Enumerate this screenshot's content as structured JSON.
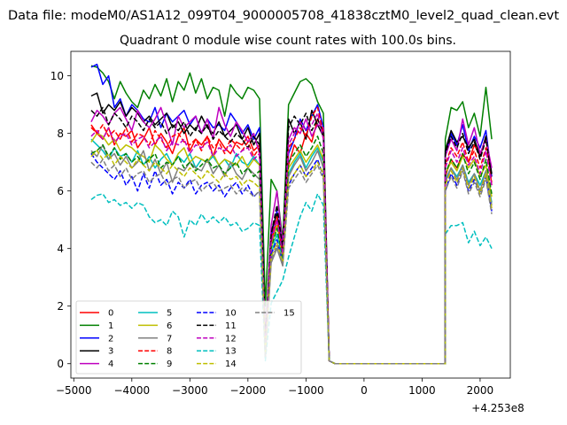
{
  "chart_data": {
    "type": "line",
    "suptitle": "Data file: modeM0/AS1A12_099T04_9000005708_41838cztM0_level2_quad_clean.evt",
    "title": "Quadrant 0 module wise count rates with 100.0s bins.",
    "xlabel": "",
    "ylabel": "",
    "x_offset_label": "+4.253e8",
    "xlim": [
      -5050,
      2520
    ],
    "ylim": [
      -0.5,
      10.85
    ],
    "xticks": [
      -5000,
      -4000,
      -3000,
      -2000,
      -1000,
      0,
      1000,
      2000
    ],
    "xtick_labels": [
      "−5000",
      "−4000",
      "−3000",
      "−2000",
      "−1000",
      "0",
      "1000",
      "2000"
    ],
    "yticks": [
      0,
      2,
      4,
      6,
      8,
      10
    ],
    "ytick_labels": [
      "0",
      "2",
      "4",
      "6",
      "8",
      "10"
    ],
    "legend_position": "lower-left",
    "legend_columns": 4,
    "segments": [
      {
        "start": -4700,
        "end": -1800,
        "step": 100
      },
      {
        "start": -1700,
        "end": -600,
        "step": 100
      },
      {
        "start": 1400,
        "end": 2200,
        "step": 100
      }
    ],
    "gap_values": {
      "x_start": -600,
      "x_end": 1400,
      "value": 0
    },
    "series": [
      {
        "name": "0",
        "color": "#ff0000",
        "dash": "solid",
        "seg1": [
          8.3,
          8.0,
          7.8,
          8.2,
          7.6,
          8.0,
          7.9,
          8.1,
          7.5,
          7.8,
          8.2,
          7.6,
          8.0,
          7.7,
          7.3,
          7.9,
          8.2,
          7.4,
          7.8,
          7.6,
          7.9,
          7.2,
          7.8,
          7.5,
          7.3,
          7.7,
          7.6,
          7.9,
          7.4,
          7.6
        ],
        "seg2": [
          0.6,
          4.2,
          5.0,
          3.7,
          6.9,
          7.6,
          7.3,
          8.0,
          7.7,
          8.5,
          8.1,
          0.1
        ],
        "seg3": [
          6.5,
          7.1,
          6.8,
          7.3,
          7.0,
          7.6,
          7.2,
          7.9,
          6.2
        ]
      },
      {
        "name": "1",
        "color": "#008000",
        "dash": "solid",
        "seg1": [
          10.35,
          10.3,
          10.1,
          9.8,
          9.2,
          9.8,
          9.4,
          9.1,
          8.9,
          9.5,
          9.2,
          9.7,
          9.3,
          9.9,
          9.1,
          9.8,
          9.5,
          10.1,
          9.4,
          9.9,
          9.2,
          9.6,
          9.5,
          8.6,
          9.7,
          9.4,
          9.2,
          9.6,
          9.5,
          9.2
        ],
        "seg2": [
          2.0,
          6.4,
          6.0,
          4.3,
          9.0,
          9.4,
          9.8,
          9.9,
          9.7,
          9.1,
          8.7,
          0.1
        ],
        "seg3": [
          7.8,
          8.9,
          8.8,
          9.1,
          8.2,
          8.7,
          7.9,
          9.6,
          7.8
        ]
      },
      {
        "name": "2",
        "color": "#0000ff",
        "dash": "solid",
        "seg1": [
          10.3,
          10.4,
          9.7,
          10.0,
          8.9,
          9.2,
          8.6,
          9.0,
          8.8,
          8.5,
          8.4,
          8.9,
          8.2,
          8.7,
          8.4,
          8.6,
          8.8,
          8.3,
          8.6,
          8.0,
          8.5,
          8.2,
          8.3,
          8.1,
          8.7,
          8.4,
          8.0,
          8.3,
          7.8,
          8.2
        ],
        "seg2": [
          0.6,
          4.4,
          5.3,
          3.9,
          7.3,
          7.8,
          8.5,
          8.1,
          8.6,
          9.0,
          8.2,
          0.1
        ],
        "seg3": [
          7.2,
          8.0,
          7.6,
          8.3,
          7.4,
          7.9,
          7.5,
          8.1,
          6.5
        ]
      },
      {
        "name": "3",
        "color": "#000000",
        "dash": "solid",
        "seg1": [
          9.3,
          9.4,
          8.7,
          9.0,
          8.8,
          9.1,
          8.6,
          8.9,
          8.7,
          8.4,
          8.6,
          8.3,
          8.5,
          8.7,
          8.2,
          8.4,
          8.0,
          8.3,
          8.1,
          8.6,
          8.2,
          8.0,
          8.4,
          7.9,
          8.1,
          8.3,
          7.8,
          8.2,
          7.6,
          8.0
        ],
        "seg2": [
          0.8,
          4.6,
          5.2,
          3.8,
          8.5,
          8.0,
          8.4,
          7.8,
          8.8,
          8.3,
          7.9,
          0.1
        ],
        "seg3": [
          7.4,
          8.1,
          7.7,
          7.9,
          7.5,
          7.8,
          7.2,
          7.9,
          6.6
        ]
      },
      {
        "name": "4",
        "color": "#bf00bf",
        "dash": "solid",
        "seg1": [
          8.4,
          8.8,
          8.6,
          8.3,
          8.7,
          8.9,
          8.5,
          8.1,
          8.8,
          8.4,
          8.2,
          8.5,
          8.9,
          8.3,
          7.6,
          8.6,
          8.2,
          8.4,
          8.6,
          8.0,
          8.5,
          7.8,
          8.9,
          8.3,
          7.9,
          8.4,
          8.1,
          7.7,
          8.0,
          7.3
        ],
        "seg2": [
          0.6,
          4.8,
          6.0,
          4.1,
          7.8,
          8.2,
          8.0,
          8.5,
          7.9,
          8.3,
          8.2,
          0.1
        ],
        "seg3": [
          7.2,
          7.8,
          7.4,
          8.5,
          7.6,
          8.2,
          7.3,
          7.8,
          6.8
        ]
      },
      {
        "name": "5",
        "color": "#00bfbf",
        "dash": "solid",
        "seg1": [
          7.8,
          7.6,
          7.4,
          7.1,
          7.5,
          7.2,
          7.3,
          7.0,
          7.4,
          6.9,
          7.2,
          6.8,
          7.1,
          7.3,
          6.9,
          7.2,
          7.0,
          7.3,
          6.8,
          7.1,
          7.0,
          7.2,
          6.9,
          7.1,
          6.8,
          7.3,
          7.0,
          6.9,
          7.2,
          6.9
        ],
        "seg2": [
          0.4,
          3.8,
          4.5,
          3.6,
          6.6,
          7.0,
          7.3,
          6.8,
          7.2,
          7.5,
          7.0,
          0.1
        ],
        "seg3": [
          6.4,
          6.8,
          6.5,
          6.9,
          6.3,
          6.6,
          6.2,
          6.7,
          5.6
        ]
      },
      {
        "name": "6",
        "color": "#bfbf00",
        "dash": "solid",
        "seg1": [
          7.7,
          8.0,
          7.9,
          7.6,
          7.8,
          7.4,
          7.6,
          7.5,
          7.3,
          7.2,
          7.0,
          7.6,
          7.4,
          7.1,
          6.9,
          7.3,
          7.5,
          7.0,
          7.2,
          7.1,
          7.0,
          7.3,
          6.9,
          7.1,
          7.0,
          6.9,
          7.2,
          6.8,
          7.1,
          6.9
        ],
        "seg2": [
          0.5,
          4.0,
          4.8,
          3.7,
          6.8,
          7.1,
          7.4,
          7.0,
          7.3,
          7.6,
          7.1,
          0.1
        ],
        "seg3": [
          6.6,
          7.0,
          6.7,
          7.2,
          6.8,
          7.1,
          6.5,
          6.9,
          5.8
        ]
      },
      {
        "name": "7",
        "color": "#808080",
        "dash": "solid",
        "seg1": [
          7.4,
          7.2,
          7.6,
          7.1,
          7.3,
          6.9,
          7.2,
          6.8,
          7.0,
          7.4,
          6.7,
          7.1,
          6.6,
          7.0,
          6.3,
          6.8,
          6.7,
          7.0,
          6.8,
          6.7,
          7.1,
          6.6,
          6.9,
          6.5,
          7.0,
          6.6,
          6.4,
          6.8,
          6.6,
          6.4
        ],
        "seg2": [
          0.2,
          3.5,
          4.0,
          3.4,
          6.5,
          6.9,
          7.2,
          6.7,
          7.0,
          7.4,
          6.8,
          0.1
        ],
        "seg3": [
          6.3,
          6.8,
          6.4,
          6.9,
          6.2,
          6.6,
          6.0,
          6.7,
          5.5
        ]
      },
      {
        "name": "8",
        "color": "#ff0000",
        "dash": "dash",
        "seg1": [
          8.2,
          8.0,
          8.3,
          7.9,
          8.1,
          7.8,
          8.2,
          7.7,
          8.0,
          7.9,
          7.6,
          8.1,
          7.8,
          7.5,
          7.9,
          8.0,
          7.7,
          7.6,
          7.8,
          7.4,
          7.9,
          7.5,
          7.7,
          7.3,
          7.8,
          7.6,
          7.4,
          7.7,
          7.2,
          7.5
        ],
        "seg2": [
          0.5,
          4.3,
          5.1,
          3.8,
          7.5,
          7.8,
          8.2,
          7.9,
          8.6,
          8.9,
          8.0,
          0.1
        ],
        "seg3": [
          6.9,
          7.5,
          7.2,
          7.7,
          7.0,
          7.4,
          6.8,
          7.5,
          6.3
        ]
      },
      {
        "name": "9",
        "color": "#008000",
        "dash": "dash",
        "seg1": [
          7.3,
          7.4,
          7.6,
          7.2,
          7.5,
          7.1,
          7.3,
          7.0,
          7.2,
          6.9,
          7.1,
          7.3,
          6.8,
          7.0,
          6.9,
          7.2,
          6.8,
          7.0,
          6.7,
          6.9,
          7.1,
          6.8,
          6.9,
          6.6,
          6.8,
          7.0,
          6.6,
          6.8,
          6.5,
          6.7
        ],
        "seg2": [
          0.4,
          4.0,
          4.7,
          3.7,
          7.0,
          7.3,
          7.6,
          7.2,
          7.5,
          7.9,
          7.3,
          0.1
        ],
        "seg3": [
          6.6,
          7.1,
          6.8,
          7.3,
          6.6,
          7.0,
          6.4,
          7.1,
          5.9
        ]
      },
      {
        "name": "10",
        "color": "#0000ff",
        "dash": "dash",
        "seg1": [
          7.3,
          7.0,
          6.8,
          6.6,
          6.4,
          6.7,
          6.2,
          6.5,
          6.0,
          6.6,
          6.1,
          6.7,
          6.2,
          6.4,
          5.9,
          6.3,
          6.1,
          6.4,
          5.9,
          6.2,
          6.3,
          6.0,
          6.2,
          5.8,
          6.1,
          6.3,
          5.9,
          6.2,
          5.8,
          6.0
        ],
        "seg2": [
          0.3,
          3.8,
          4.3,
          3.5,
          6.2,
          6.6,
          6.9,
          6.5,
          6.8,
          7.1,
          6.5,
          0.1
        ],
        "seg3": [
          6.0,
          6.6,
          6.2,
          6.8,
          6.0,
          6.4,
          5.9,
          6.5,
          5.3
        ]
      },
      {
        "name": "11",
        "color": "#000000",
        "dash": "dash",
        "seg1": [
          8.8,
          8.6,
          8.9,
          8.3,
          8.7,
          8.5,
          8.2,
          8.6,
          8.4,
          8.1,
          8.5,
          8.2,
          8.4,
          8.0,
          8.3,
          8.1,
          8.4,
          7.9,
          8.2,
          8.0,
          8.3,
          7.8,
          8.1,
          7.9,
          7.7,
          8.0,
          7.8,
          7.5,
          7.9,
          7.6
        ],
        "seg2": [
          0.7,
          4.5,
          5.5,
          4.0,
          8.2,
          8.6,
          8.3,
          8.7,
          8.1,
          8.5,
          8.0,
          0.1
        ],
        "seg3": [
          7.3,
          7.9,
          7.5,
          8.0,
          7.3,
          7.7,
          7.1,
          7.8,
          6.5
        ]
      },
      {
        "name": "12",
        "color": "#bf00bf",
        "dash": "dash",
        "seg1": [
          7.9,
          8.1,
          7.8,
          8.2,
          7.7,
          7.9,
          8.0,
          7.6,
          7.8,
          7.9,
          7.5,
          7.7,
          7.9,
          7.4,
          7.7,
          7.6,
          7.8,
          7.3,
          7.6,
          7.5,
          7.7,
          7.2,
          7.5,
          7.4,
          7.6,
          7.2,
          7.4,
          7.5,
          7.1,
          7.3
        ],
        "seg2": [
          0.5,
          4.2,
          5.0,
          3.8,
          7.6,
          8.0,
          8.4,
          8.1,
          8.3,
          8.7,
          7.8,
          0.1
        ],
        "seg3": [
          6.8,
          7.4,
          7.0,
          7.5,
          6.9,
          7.2,
          6.6,
          7.4,
          6.2
        ]
      },
      {
        "name": "13",
        "color": "#00bfbf",
        "dash": "dash",
        "seg1": [
          5.7,
          5.85,
          5.9,
          5.6,
          5.7,
          5.5,
          5.6,
          5.4,
          5.6,
          5.5,
          5.1,
          4.9,
          5.0,
          4.8,
          5.3,
          5.1,
          4.4,
          5.0,
          4.8,
          5.2,
          4.9,
          5.1,
          4.9,
          5.1,
          4.8,
          4.9,
          4.6,
          4.7,
          4.9,
          4.8
        ],
        "seg2": [
          0.1,
          2.1,
          2.5,
          2.9,
          3.7,
          4.4,
          5.1,
          5.6,
          5.3,
          5.9,
          5.5,
          0.1
        ],
        "seg3": [
          4.5,
          4.8,
          4.8,
          4.9,
          4.2,
          4.6,
          4.1,
          4.4,
          4.0
        ]
      },
      {
        "name": "14",
        "color": "#bfbf00",
        "dash": "dash",
        "seg1": [
          7.2,
          7.4,
          7.1,
          7.3,
          6.9,
          7.2,
          7.0,
          6.8,
          7.1,
          6.9,
          6.7,
          7.0,
          6.8,
          6.6,
          6.9,
          6.7,
          6.5,
          6.8,
          6.6,
          6.4,
          6.7,
          6.5,
          6.3,
          6.6,
          6.4,
          6.5,
          6.2,
          6.4,
          6.3,
          6.1
        ],
        "seg2": [
          0.3,
          3.7,
          4.2,
          3.5,
          6.3,
          6.6,
          6.9,
          6.5,
          6.7,
          7.0,
          6.6,
          0.1
        ],
        "seg3": [
          6.2,
          6.7,
          6.3,
          6.8,
          6.1,
          6.5,
          5.9,
          6.6,
          5.4
        ]
      },
      {
        "name": "15",
        "color": "#808080",
        "dash": "dash",
        "seg1": [
          7.0,
          6.8,
          7.1,
          6.7,
          6.9,
          6.5,
          6.8,
          6.4,
          6.6,
          6.7,
          6.3,
          6.5,
          6.6,
          6.2,
          6.4,
          6.5,
          6.1,
          6.3,
          6.4,
          6.0,
          6.2,
          6.3,
          6.0,
          6.1,
          6.2,
          5.9,
          6.1,
          6.0,
          5.8,
          6.0
        ],
        "seg2": [
          0.2,
          3.6,
          4.1,
          3.4,
          6.1,
          6.4,
          6.7,
          6.3,
          6.6,
          6.9,
          6.4,
          0.1
        ],
        "seg3": [
          6.0,
          6.5,
          6.1,
          6.7,
          5.9,
          6.3,
          5.8,
          6.4,
          5.2
        ]
      }
    ]
  }
}
